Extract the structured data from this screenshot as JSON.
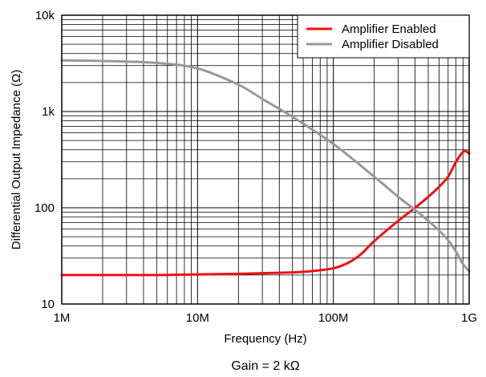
{
  "chart_data": {
    "type": "line",
    "title": "",
    "xlabel": "Frequency (Hz)",
    "ylabel": "Differential Output Impedance (Ω)",
    "x_scale": "log",
    "y_scale": "log",
    "xlim": [
      1000000,
      1000000000
    ],
    "ylim": [
      10,
      10000
    ],
    "x_tick_values": [
      1000000,
      10000000,
      100000000,
      1000000000
    ],
    "x_tick_labels": [
      "1M",
      "10M",
      "100M",
      "1G"
    ],
    "y_tick_values": [
      10,
      100,
      1000,
      10000
    ],
    "y_tick_labels": [
      "10",
      "100",
      "1k",
      "10k"
    ],
    "grid": true,
    "legend_position": "top-right",
    "caption": "Gain = 2 kΩ",
    "series": [
      {
        "name": "Amplifier Enabled",
        "color": "#ee1111",
        "x": [
          1000000,
          2000000,
          5000000,
          10000000,
          20000000,
          50000000,
          70000000,
          100000000,
          130000000,
          160000000,
          200000000,
          300000000,
          400000000,
          500000000,
          600000000,
          700000000,
          800000000,
          900000000,
          950000000,
          1000000000
        ],
        "y": [
          20,
          20,
          20,
          20.3,
          20.6,
          21.3,
          22,
          23.5,
          27,
          33,
          45,
          73,
          100,
          130,
          165,
          210,
          300,
          380,
          385,
          365
        ]
      },
      {
        "name": "Amplifier Disabled",
        "color": "#999999",
        "x": [
          1000000,
          2000000,
          5000000,
          10000000,
          20000000,
          30000000,
          50000000,
          100000000,
          200000000,
          300000000,
          400000000,
          500000000,
          600000000,
          700000000,
          800000000,
          900000000,
          1000000000
        ],
        "y": [
          3400,
          3350,
          3200,
          2800,
          1900,
          1350,
          880,
          460,
          210,
          130,
          95,
          73,
          58,
          46,
          35,
          26,
          22
        ]
      }
    ]
  }
}
